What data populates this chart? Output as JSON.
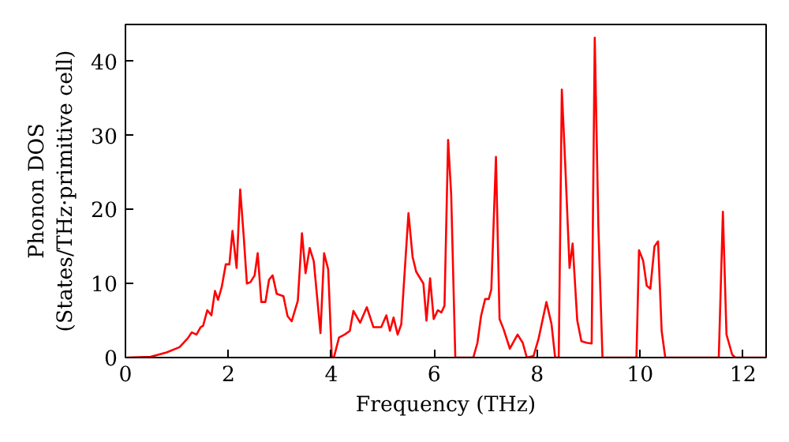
{
  "chart_data": {
    "type": "line",
    "xlabel": "Frequency (THz)",
    "ylabel": "Phonon DOS\n(States/THz·primitive cell)",
    "xlim": [
      0,
      12.45
    ],
    "ylim": [
      0,
      45
    ],
    "xticks": [
      0,
      2,
      4,
      6,
      8,
      10,
      12
    ],
    "yticks": [
      0,
      10,
      20,
      30,
      40
    ],
    "grid": false,
    "marker": "none",
    "line_style": "solid",
    "series": [
      {
        "color": "#ff0000",
        "x": [
          0.03,
          0.49,
          0.8,
          1.05,
          1.21,
          1.29,
          1.38,
          1.46,
          1.51,
          1.59,
          1.67,
          1.74,
          1.8,
          1.87,
          1.95,
          2.02,
          2.08,
          2.16,
          2.23,
          2.3,
          2.36,
          2.43,
          2.51,
          2.57,
          2.64,
          2.72,
          2.79,
          2.86,
          2.94,
          3.07,
          3.15,
          3.23,
          3.35,
          3.43,
          3.5,
          3.58,
          3.66,
          3.79,
          3.86,
          3.94,
          4.01,
          4.05,
          4.15,
          4.26,
          4.36,
          4.43,
          4.56,
          4.69,
          4.82,
          4.97,
          5.07,
          5.14,
          5.21,
          5.29,
          5.36,
          5.5,
          5.58,
          5.65,
          5.79,
          5.85,
          5.92,
          5.99,
          6.07,
          6.14,
          6.2,
          6.27,
          6.33,
          6.41,
          6.76,
          6.84,
          6.91,
          6.99,
          7.06,
          7.11,
          7.2,
          7.27,
          7.35,
          7.47,
          7.62,
          7.72,
          7.8,
          7.93,
          8.03,
          8.18,
          8.28,
          8.35,
          8.42,
          8.48,
          8.55,
          8.63,
          8.69,
          8.78,
          8.86,
          8.96,
          9.06,
          9.12,
          9.19,
          9.27,
          9.93,
          9.98,
          10.06,
          10.13,
          10.2,
          10.28,
          10.35,
          10.42,
          10.49,
          11.53,
          11.61,
          11.68,
          11.79,
          11.85,
          12.45
        ],
        "values": [
          0,
          0.1,
          0.7,
          1.4,
          2.6,
          3.4,
          3.1,
          4.1,
          4.3,
          6.4,
          5.7,
          9.0,
          7.8,
          9.5,
          12.6,
          12.6,
          17.1,
          12.1,
          22.7,
          16.2,
          10.0,
          10.2,
          11.1,
          14.1,
          7.5,
          7.5,
          10.5,
          11.1,
          8.6,
          8.3,
          5.6,
          4.9,
          7.7,
          16.8,
          11.4,
          14.8,
          13.0,
          3.3,
          14.1,
          11.9,
          0,
          0,
          2.7,
          3.1,
          3.6,
          6.3,
          4.7,
          6.8,
          4.1,
          4.1,
          5.7,
          3.6,
          5.4,
          3.1,
          4.5,
          19.5,
          13.6,
          11.6,
          10.0,
          5.0,
          10.7,
          5.2,
          6.4,
          6.1,
          7.0,
          29.4,
          22.0,
          0,
          0,
          2.0,
          5.6,
          7.9,
          7.9,
          9.2,
          27.1,
          5.2,
          3.8,
          1.2,
          3.1,
          2.0,
          0,
          0.2,
          2.6,
          7.5,
          4.5,
          0,
          0,
          36.2,
          25.5,
          12.1,
          15.4,
          5.0,
          2.2,
          2.0,
          1.9,
          43.2,
          17.7,
          0,
          0,
          14.5,
          13.1,
          9.7,
          9.3,
          15.0,
          15.7,
          3.6,
          0,
          0,
          19.7,
          3.1,
          0.4,
          0,
          0
        ]
      }
    ]
  }
}
